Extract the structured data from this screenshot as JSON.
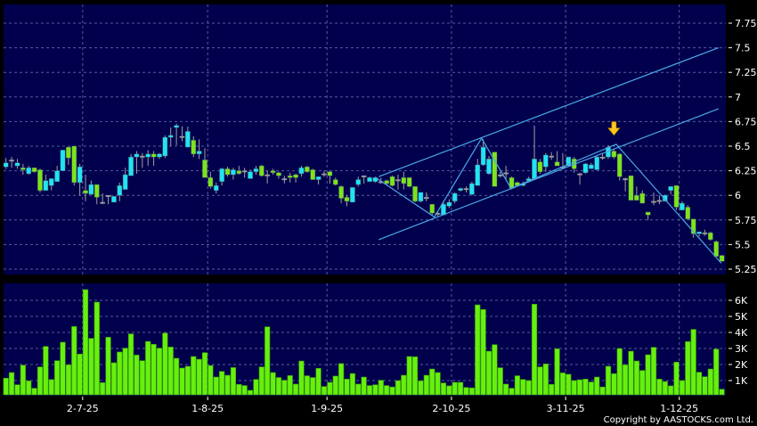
{
  "chart_data": [
    {
      "type": "candlestick",
      "panel": "price",
      "y_axis_position": "right",
      "ylim": [
        5.2,
        7.9
      ],
      "y_ticks": [
        "5.25",
        "5.5",
        "5.75",
        "6",
        "6.25",
        "6.5",
        "6.75",
        "7",
        "7.25",
        "7.5",
        "7.75"
      ],
      "grid": true,
      "x_tick_labels": [
        {
          "label": "2-7-25",
          "at_index": 13.5
        },
        {
          "label": "1-8-25",
          "at_index": 35.5
        },
        {
          "label": "1-9-25",
          "at_index": 56.5
        },
        {
          "label": "2-10-25",
          "at_index": 78.4
        },
        {
          "label": "3-11-25",
          "at_index": 98.5
        },
        {
          "label": "1-12-25",
          "at_index": 118.5
        }
      ],
      "colors": {
        "up": "#20e4f4",
        "down": "#7ce41c",
        "flat": "#9a9a9a",
        "wick": "#a0a0a0",
        "trendline": "#4aa8e8",
        "arrow": "#ffc820"
      },
      "ohlc_fields": [
        "open",
        "high",
        "low",
        "close"
      ],
      "ohlc": [
        [
          6.29,
          6.38,
          6.27,
          6.33
        ],
        [
          6.35,
          6.39,
          6.28,
          6.36
        ],
        [
          6.3,
          6.37,
          6.27,
          6.33
        ],
        [
          6.28,
          6.32,
          6.21,
          6.26
        ],
        [
          6.22,
          6.3,
          6.21,
          6.28
        ],
        [
          6.28,
          6.28,
          6.23,
          6.24
        ],
        [
          6.26,
          6.27,
          6.03,
          6.05
        ],
        [
          6.05,
          6.21,
          6.05,
          6.15
        ],
        [
          6.1,
          6.17,
          6.05,
          6.17
        ],
        [
          6.14,
          6.3,
          6.14,
          6.25
        ],
        [
          6.25,
          6.46,
          6.25,
          6.46
        ],
        [
          6.49,
          6.49,
          6.31,
          6.38
        ],
        [
          6.5,
          6.5,
          6.1,
          6.13
        ],
        [
          6.13,
          6.32,
          6.0,
          6.29
        ],
        [
          6.05,
          6.21,
          5.94,
          6.02
        ],
        [
          6.01,
          6.15,
          6.01,
          6.11
        ],
        [
          6.11,
          6.11,
          5.91,
          5.98
        ],
        [
          5.93,
          6.02,
          5.91,
          5.93
        ],
        [
          6.0,
          6.0,
          5.91,
          6.0
        ],
        [
          5.93,
          5.99,
          5.93,
          5.99
        ],
        [
          6.0,
          6.13,
          5.94,
          6.1
        ],
        [
          6.06,
          6.28,
          6.06,
          6.21
        ],
        [
          6.2,
          6.42,
          6.2,
          6.39
        ],
        [
          6.39,
          6.45,
          6.22,
          6.42
        ],
        [
          6.4,
          6.43,
          6.28,
          6.4
        ],
        [
          6.39,
          6.46,
          6.3,
          6.42
        ],
        [
          6.42,
          6.45,
          6.3,
          6.39
        ],
        [
          6.39,
          6.43,
          6.37,
          6.42
        ],
        [
          6.4,
          6.61,
          6.38,
          6.59
        ],
        [
          6.59,
          6.69,
          6.5,
          6.61
        ],
        [
          6.69,
          6.73,
          6.51,
          6.71
        ],
        [
          6.6,
          6.7,
          6.55,
          6.6
        ],
        [
          6.49,
          6.7,
          6.49,
          6.65
        ],
        [
          6.56,
          6.6,
          6.39,
          6.42
        ],
        [
          6.42,
          6.57,
          6.37,
          6.45
        ],
        [
          6.36,
          6.48,
          6.18,
          6.18
        ],
        [
          6.18,
          6.24,
          6.07,
          6.09
        ],
        [
          6.05,
          6.13,
          6.02,
          6.1
        ],
        [
          6.14,
          6.28,
          6.1,
          6.27
        ],
        [
          6.27,
          6.29,
          6.19,
          6.21
        ],
        [
          6.21,
          6.28,
          6.16,
          6.26
        ],
        [
          6.25,
          6.3,
          6.21,
          6.22
        ],
        [
          6.25,
          6.28,
          6.18,
          6.25
        ],
        [
          6.17,
          6.26,
          6.17,
          6.24
        ],
        [
          6.24,
          6.3,
          6.21,
          6.27
        ],
        [
          6.3,
          6.31,
          6.19,
          6.2
        ],
        [
          6.21,
          6.25,
          6.12,
          6.21
        ],
        [
          6.25,
          6.27,
          6.21,
          6.23
        ],
        [
          6.23,
          6.24,
          6.17,
          6.2
        ],
        [
          6.17,
          6.2,
          6.12,
          6.17
        ],
        [
          6.2,
          6.23,
          6.13,
          6.18
        ],
        [
          6.21,
          6.22,
          6.13,
          6.18
        ],
        [
          6.22,
          6.3,
          6.19,
          6.28
        ],
        [
          6.29,
          6.3,
          6.23,
          6.24
        ],
        [
          6.26,
          6.27,
          6.16,
          6.16
        ],
        [
          6.16,
          6.19,
          6.11,
          6.19
        ],
        [
          6.22,
          6.25,
          6.19,
          6.22
        ],
        [
          6.24,
          6.25,
          6.12,
          6.2
        ],
        [
          6.16,
          6.18,
          6.1,
          6.11
        ],
        [
          6.09,
          6.1,
          5.92,
          5.97
        ],
        [
          5.98,
          6.0,
          5.89,
          5.94
        ],
        [
          5.93,
          6.08,
          5.93,
          6.08
        ],
        [
          6.11,
          6.19,
          6.09,
          6.16
        ],
        [
          6.2,
          6.2,
          6.12,
          6.2
        ],
        [
          6.14,
          6.19,
          6.14,
          6.18
        ],
        [
          6.14,
          6.19,
          6.13,
          6.18
        ],
        [
          6.14,
          6.18,
          6.12,
          6.14
        ],
        [
          6.15,
          6.16,
          6.11,
          6.12
        ],
        [
          6.19,
          6.2,
          6.09,
          6.1
        ],
        [
          6.16,
          6.21,
          6.06,
          6.16
        ],
        [
          6.18,
          6.24,
          6.06,
          6.12
        ],
        [
          6.18,
          6.18,
          6.08,
          6.09
        ],
        [
          6.09,
          6.09,
          5.93,
          5.94
        ],
        [
          5.94,
          6.03,
          5.93,
          6.03
        ],
        [
          5.98,
          6.03,
          5.94,
          5.98
        ],
        [
          5.91,
          5.91,
          5.8,
          5.82
        ],
        [
          5.82,
          5.84,
          5.79,
          5.82
        ],
        [
          5.8,
          5.94,
          5.8,
          5.91
        ],
        [
          5.89,
          5.96,
          5.87,
          5.93
        ],
        [
          5.94,
          6.03,
          5.92,
          6.02
        ],
        [
          6.05,
          6.08,
          6.04,
          6.07
        ],
        [
          6.07,
          6.09,
          6.03,
          6.07
        ],
        [
          6.01,
          6.14,
          6.0,
          6.12
        ],
        [
          6.1,
          6.37,
          6.1,
          6.31
        ],
        [
          6.31,
          6.57,
          6.3,
          6.49
        ],
        [
          6.22,
          6.4,
          6.21,
          6.37
        ],
        [
          6.44,
          6.44,
          6.09,
          6.09
        ],
        [
          6.21,
          6.24,
          6.18,
          6.21
        ],
        [
          6.23,
          6.3,
          6.17,
          6.23
        ],
        [
          6.18,
          6.19,
          6.06,
          6.07
        ],
        [
          6.13,
          6.14,
          6.09,
          6.1
        ],
        [
          6.1,
          6.14,
          6.09,
          6.12
        ],
        [
          6.15,
          6.19,
          6.14,
          6.17
        ],
        [
          6.17,
          6.71,
          6.17,
          6.37
        ],
        [
          6.34,
          6.37,
          6.22,
          6.24
        ],
        [
          6.29,
          6.43,
          6.24,
          6.41
        ],
        [
          6.4,
          6.44,
          6.36,
          6.4
        ],
        [
          6.34,
          6.45,
          6.3,
          6.3
        ],
        [
          6.29,
          6.43,
          6.27,
          6.29
        ],
        [
          6.3,
          6.39,
          6.3,
          6.39
        ],
        [
          6.37,
          6.39,
          6.23,
          6.27
        ],
        [
          6.22,
          6.23,
          6.11,
          6.22
        ],
        [
          6.23,
          6.33,
          6.22,
          6.32
        ],
        [
          6.27,
          6.33,
          6.27,
          6.31
        ],
        [
          6.26,
          6.4,
          6.26,
          6.39
        ],
        [
          6.39,
          6.43,
          6.36,
          6.39
        ],
        [
          6.39,
          6.51,
          6.37,
          6.49
        ],
        [
          6.45,
          6.47,
          6.37,
          6.39
        ],
        [
          6.42,
          6.43,
          6.15,
          6.19
        ],
        [
          6.17,
          6.18,
          6.04,
          6.17
        ],
        [
          6.2,
          6.2,
          5.95,
          5.95
        ],
        [
          6.0,
          6.09,
          5.95,
          5.95
        ],
        [
          6.02,
          6.05,
          5.92,
          5.92
        ],
        [
          5.83,
          5.83,
          5.75,
          5.8
        ],
        [
          5.94,
          6.03,
          5.9,
          5.94
        ],
        [
          5.94,
          6.0,
          5.91,
          5.95
        ],
        [
          5.94,
          6.01,
          5.94,
          6.0
        ],
        [
          6.05,
          6.09,
          6.01,
          6.09
        ],
        [
          6.1,
          6.1,
          5.85,
          5.88
        ],
        [
          5.85,
          5.94,
          5.85,
          5.92
        ],
        [
          5.88,
          5.9,
          5.75,
          5.76
        ],
        [
          5.76,
          5.76,
          5.57,
          5.61
        ],
        [
          5.61,
          5.63,
          5.58,
          5.63
        ],
        [
          5.62,
          5.65,
          5.59,
          5.62
        ],
        [
          5.62,
          5.63,
          5.54,
          5.55
        ],
        [
          5.53,
          5.54,
          5.38,
          5.38
        ],
        [
          5.39,
          5.39,
          5.33,
          5.33
        ]
      ],
      "trendlines": [
        {
          "kind": "channel-upper",
          "points": [
            [
              65.6,
              6.19
            ],
            [
              125.4,
              7.5
            ]
          ]
        },
        {
          "kind": "channel-lower",
          "points": [
            [
              65.6,
              5.55
            ],
            [
              125.4,
              6.88
            ]
          ]
        },
        {
          "kind": "zigzag",
          "points": [
            [
              65.1,
              6.18
            ],
            [
              75.4,
              5.78
            ],
            [
              83.7,
              6.58
            ],
            [
              88.9,
              6.07
            ],
            [
              107.4,
              6.52
            ],
            [
              125.9,
              5.31
            ]
          ]
        }
      ],
      "annotations": [
        {
          "kind": "down-arrow",
          "at_index": 107,
          "price": 6.62
        }
      ]
    },
    {
      "type": "bar",
      "panel": "volume",
      "y_axis_position": "right",
      "ylim": [
        0,
        7
      ],
      "y_ticks": [
        "1K",
        "2K",
        "3K",
        "4K",
        "5K",
        "6K"
      ],
      "y_tick_values": [
        1,
        2,
        3,
        4,
        5,
        6
      ],
      "unit": "K",
      "grid": true,
      "bar_color": "#66f00e",
      "values": [
        1.15,
        1.5,
        0.74,
        1.96,
        0.98,
        0.52,
        1.85,
        3.13,
        1.06,
        2.24,
        3.39,
        1.98,
        4.37,
        2.65,
        6.67,
        3.63,
        5.89,
        0.87,
        3.7,
        2.11,
        2.78,
        3.02,
        3.91,
        2.59,
        2.24,
        3.44,
        3.26,
        3.02,
        3.96,
        3.09,
        2.39,
        1.78,
        1.89,
        2.5,
        2.33,
        2.74,
        1.94,
        1.22,
        1.57,
        1.33,
        1.81,
        0.76,
        0.69,
        0.39,
        1.07,
        1.85,
        4.35,
        1.5,
        1.19,
        1.02,
        1.31,
        0.78,
        2.22,
        1.3,
        1.19,
        1.76,
        0.63,
        0.89,
        1.28,
        2.06,
        1.09,
        1.44,
        0.78,
        1.22,
        0.69,
        0.74,
        1.02,
        0.69,
        0.6,
        1.0,
        1.33,
        2.5,
        2.48,
        0.98,
        1.33,
        1.72,
        1.5,
        0.85,
        0.67,
        0.89,
        0.89,
        0.57,
        0.54,
        5.72,
        5.43,
        2.83,
        3.24,
        1.8,
        0.78,
        0.52,
        1.3,
        1.07,
        1.0,
        5.76,
        1.85,
        2.04,
        0.76,
        2.98,
        1.48,
        1.39,
        1.0,
        1.05,
        1.09,
        0.91,
        1.22,
        0.6,
        1.89,
        1.43,
        3.0,
        1.98,
        2.83,
        2.22,
        1.63,
        2.61,
        3.07,
        1.09,
        0.94,
        0.67,
        2.15,
        1.0,
        3.43,
        4.19,
        1.52,
        1.24,
        1.72,
        2.96,
        0.46
      ]
    }
  ],
  "copyright": "Copyright by AASTOCKS.com Ltd."
}
